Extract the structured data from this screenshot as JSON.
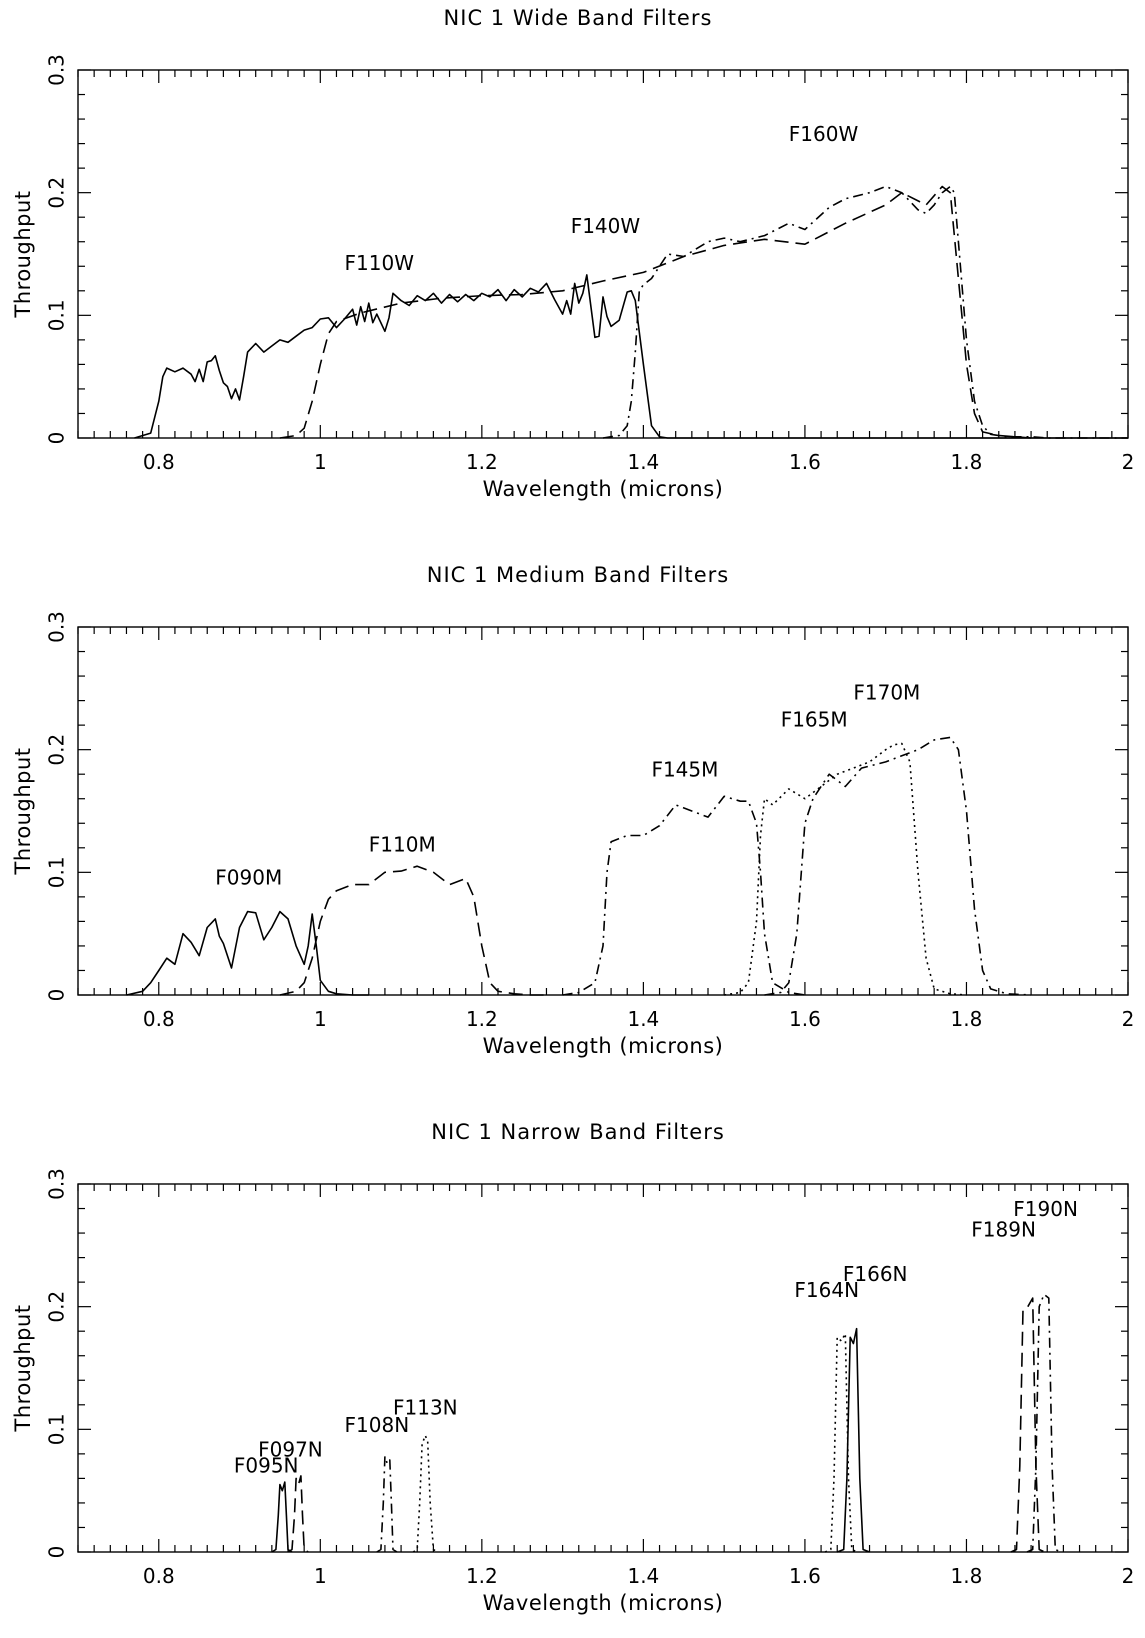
{
  "chart_data": [
    {
      "type": "line",
      "title": "NIC 1 Wide Band Filters",
      "xlabel": "Wavelength (microns)",
      "ylabel": "Throughput",
      "xlim": [
        0.7,
        2.0
      ],
      "ylim": [
        0,
        0.3
      ],
      "xticks": [
        "0.8",
        "1",
        "1.2",
        "1.4",
        "1.6",
        "1.8",
        "2"
      ],
      "yticks": [
        "0",
        "0.1",
        "0.2",
        "0.3"
      ],
      "grid": false,
      "series": [
        {
          "name": "F110W",
          "style": "solid",
          "label_at": [
            1.03,
            0.137
          ],
          "x": [
            0.77,
            0.79,
            0.8,
            0.805,
            0.81,
            0.82,
            0.83,
            0.84,
            0.845,
            0.85,
            0.855,
            0.86,
            0.865,
            0.87,
            0.875,
            0.88,
            0.885,
            0.89,
            0.895,
            0.9,
            0.905,
            0.91,
            0.92,
            0.93,
            0.94,
            0.95,
            0.96,
            0.97,
            0.98,
            0.99,
            1.0,
            1.01,
            1.02,
            1.03,
            1.04,
            1.045,
            1.05,
            1.055,
            1.06,
            1.065,
            1.07,
            1.08,
            1.085,
            1.09,
            1.1,
            1.11,
            1.12,
            1.13,
            1.14,
            1.15,
            1.16,
            1.17,
            1.18,
            1.19,
            1.2,
            1.21,
            1.22,
            1.23,
            1.24,
            1.25,
            1.26,
            1.27,
            1.28,
            1.29,
            1.3,
            1.305,
            1.31,
            1.315,
            1.32,
            1.325,
            1.33,
            1.34,
            1.345,
            1.35,
            1.355,
            1.36,
            1.37,
            1.38,
            1.385,
            1.39,
            1.4,
            1.41,
            1.42,
            1.43,
            1.45,
            1.5,
            1.6,
            1.7,
            1.8,
            1.9,
            2.0
          ],
          "y": [
            0,
            0.004,
            0.03,
            0.05,
            0.057,
            0.054,
            0.057,
            0.052,
            0.046,
            0.056,
            0.046,
            0.062,
            0.063,
            0.067,
            0.055,
            0.045,
            0.042,
            0.032,
            0.04,
            0.031,
            0.05,
            0.07,
            0.077,
            0.07,
            0.075,
            0.08,
            0.078,
            0.083,
            0.088,
            0.09,
            0.097,
            0.098,
            0.09,
            0.097,
            0.105,
            0.092,
            0.107,
            0.095,
            0.11,
            0.094,
            0.101,
            0.087,
            0.098,
            0.118,
            0.112,
            0.108,
            0.116,
            0.112,
            0.118,
            0.11,
            0.117,
            0.111,
            0.117,
            0.112,
            0.118,
            0.115,
            0.121,
            0.112,
            0.121,
            0.115,
            0.122,
            0.119,
            0.126,
            0.113,
            0.101,
            0.112,
            0.101,
            0.126,
            0.11,
            0.118,
            0.133,
            0.082,
            0.083,
            0.115,
            0.099,
            0.091,
            0.096,
            0.119,
            0.12,
            0.112,
            0.06,
            0.01,
            0.001,
            0,
            0,
            0,
            0,
            0,
            0,
            0,
            0
          ]
        },
        {
          "name": "F140W",
          "style": "dashed",
          "label_at": [
            1.31,
            0.167
          ],
          "x": [
            0.95,
            0.97,
            0.98,
            0.99,
            1.0,
            1.01,
            1.02,
            1.05,
            1.1,
            1.15,
            1.2,
            1.25,
            1.3,
            1.35,
            1.4,
            1.45,
            1.5,
            1.55,
            1.6,
            1.65,
            1.7,
            1.72,
            1.75,
            1.77,
            1.78,
            1.79,
            1.8,
            1.81,
            1.82,
            1.84,
            1.86,
            1.88
          ],
          "y": [
            0,
            0.002,
            0.008,
            0.03,
            0.06,
            0.085,
            0.095,
            0.102,
            0.11,
            0.114,
            0.116,
            0.117,
            0.12,
            0.128,
            0.135,
            0.148,
            0.157,
            0.162,
            0.158,
            0.175,
            0.19,
            0.2,
            0.19,
            0.205,
            0.2,
            0.13,
            0.06,
            0.02,
            0.005,
            0.002,
            0.001,
            0
          ]
        },
        {
          "name": "F160W",
          "style": "dashdot",
          "label_at": [
            1.58,
            0.242
          ],
          "x": [
            1.35,
            1.37,
            1.38,
            1.385,
            1.39,
            1.395,
            1.4,
            1.41,
            1.43,
            1.45,
            1.48,
            1.5,
            1.52,
            1.55,
            1.58,
            1.6,
            1.63,
            1.65,
            1.68,
            1.7,
            1.72,
            1.74,
            1.75,
            1.76,
            1.77,
            1.78,
            1.785,
            1.79,
            1.8,
            1.81,
            1.82,
            1.83,
            1.85,
            1.88,
            1.9,
            2.0
          ],
          "y": [
            0,
            0.002,
            0.01,
            0.03,
            0.07,
            0.12,
            0.125,
            0.13,
            0.15,
            0.148,
            0.16,
            0.163,
            0.16,
            0.165,
            0.175,
            0.17,
            0.188,
            0.195,
            0.2,
            0.205,
            0.2,
            0.186,
            0.183,
            0.19,
            0.2,
            0.205,
            0.2,
            0.16,
            0.08,
            0.03,
            0.01,
            0.003,
            0.001,
            0.001,
            0,
            0
          ]
        }
      ]
    },
    {
      "type": "line",
      "title": "NIC 1 Medium Band Filters",
      "xlabel": "Wavelength (microns)",
      "ylabel": "Throughput",
      "xlim": [
        0.7,
        2.0
      ],
      "ylim": [
        0,
        0.3
      ],
      "xticks": [
        "0.8",
        "1",
        "1.2",
        "1.4",
        "1.6",
        "1.8",
        "2"
      ],
      "yticks": [
        "0",
        "0.1",
        "0.2",
        "0.3"
      ],
      "grid": false,
      "series": [
        {
          "name": "F090M",
          "style": "solid",
          "label_at": [
            0.87,
            0.09
          ],
          "x": [
            0.76,
            0.78,
            0.79,
            0.8,
            0.81,
            0.82,
            0.83,
            0.84,
            0.85,
            0.86,
            0.87,
            0.875,
            0.88,
            0.89,
            0.9,
            0.91,
            0.92,
            0.93,
            0.94,
            0.95,
            0.96,
            0.97,
            0.98,
            0.985,
            0.99,
            0.995,
            1.0,
            1.01,
            1.02,
            1.04,
            1.06
          ],
          "y": [
            0,
            0.003,
            0.01,
            0.02,
            0.03,
            0.025,
            0.05,
            0.043,
            0.032,
            0.055,
            0.062,
            0.048,
            0.042,
            0.022,
            0.055,
            0.068,
            0.067,
            0.045,
            0.055,
            0.068,
            0.062,
            0.04,
            0.025,
            0.04,
            0.066,
            0.04,
            0.012,
            0.003,
            0.001,
            0,
            0
          ]
        },
        {
          "name": "F110M",
          "style": "dashed",
          "label_at": [
            1.06,
            0.117
          ],
          "x": [
            0.95,
            0.97,
            0.98,
            0.99,
            1.0,
            1.01,
            1.02,
            1.04,
            1.06,
            1.08,
            1.1,
            1.12,
            1.14,
            1.16,
            1.18,
            1.19,
            1.2,
            1.21,
            1.22,
            1.24,
            1.26,
            1.28
          ],
          "y": [
            0,
            0.003,
            0.01,
            0.03,
            0.06,
            0.078,
            0.085,
            0.09,
            0.09,
            0.1,
            0.101,
            0.105,
            0.1,
            0.09,
            0.095,
            0.08,
            0.04,
            0.01,
            0.003,
            0.001,
            0,
            0
          ]
        },
        {
          "name": "F145M",
          "style": "dashdot",
          "label_at": [
            1.41,
            0.178
          ],
          "x": [
            1.3,
            1.32,
            1.34,
            1.35,
            1.355,
            1.36,
            1.38,
            1.4,
            1.42,
            1.44,
            1.46,
            1.48,
            1.5,
            1.52,
            1.53,
            1.54,
            1.545,
            1.55,
            1.56,
            1.58,
            1.6
          ],
          "y": [
            0,
            0.002,
            0.01,
            0.04,
            0.1,
            0.125,
            0.13,
            0.13,
            0.138,
            0.155,
            0.15,
            0.145,
            0.162,
            0.158,
            0.158,
            0.14,
            0.1,
            0.05,
            0.01,
            0.002,
            0
          ]
        },
        {
          "name": "F165M",
          "style": "dotted",
          "label_at": [
            1.57,
            0.219
          ],
          "x": [
            1.5,
            1.52,
            1.53,
            1.54,
            1.545,
            1.55,
            1.56,
            1.58,
            1.6,
            1.62,
            1.64,
            1.66,
            1.68,
            1.7,
            1.71,
            1.72,
            1.73,
            1.74,
            1.75,
            1.76,
            1.78,
            1.8
          ],
          "y": [
            0,
            0.002,
            0.01,
            0.06,
            0.13,
            0.16,
            0.155,
            0.168,
            0.16,
            0.17,
            0.18,
            0.185,
            0.19,
            0.2,
            0.204,
            0.205,
            0.19,
            0.1,
            0.03,
            0.005,
            0.001,
            0
          ]
        },
        {
          "name": "F170M",
          "style": "dashdot",
          "label_at": [
            1.66,
            0.241
          ],
          "x": [
            1.55,
            1.57,
            1.58,
            1.59,
            1.6,
            1.61,
            1.63,
            1.65,
            1.67,
            1.7,
            1.72,
            1.74,
            1.76,
            1.78,
            1.79,
            1.8,
            1.81,
            1.82,
            1.83,
            1.85,
            1.88
          ],
          "y": [
            0,
            0.002,
            0.01,
            0.05,
            0.14,
            0.16,
            0.18,
            0.17,
            0.185,
            0.19,
            0.195,
            0.2,
            0.208,
            0.21,
            0.2,
            0.15,
            0.07,
            0.02,
            0.005,
            0.001,
            0
          ]
        }
      ]
    },
    {
      "type": "line",
      "title": "NIC 1 Narrow Band Filters",
      "xlabel": "Wavelength (microns)",
      "ylabel": "Throughput",
      "xlim": [
        0.7,
        2.0
      ],
      "ylim": [
        0,
        0.3
      ],
      "xticks": [
        "0.8",
        "1",
        "1.2",
        "1.4",
        "1.6",
        "1.8",
        "2"
      ],
      "yticks": [
        "0",
        "0.1",
        "0.2",
        "0.3"
      ],
      "grid": false,
      "series": [
        {
          "name": "F095N",
          "style": "solid",
          "label_at": [
            0.893,
            0.065
          ],
          "x": [
            0.94,
            0.945,
            0.948,
            0.95,
            0.953,
            0.956,
            0.958,
            0.96,
            0.965
          ],
          "y": [
            0,
            0.002,
            0.03,
            0.055,
            0.05,
            0.057,
            0.03,
            0.002,
            0
          ]
        },
        {
          "name": "F097N",
          "style": "dashed",
          "label_at": [
            0.923,
            0.078
          ],
          "x": [
            0.96,
            0.965,
            0.968,
            0.97,
            0.973,
            0.976,
            0.978,
            0.98,
            0.985
          ],
          "y": [
            0,
            0.002,
            0.03,
            0.06,
            0.055,
            0.062,
            0.03,
            0.002,
            0
          ]
        },
        {
          "name": "F108N",
          "style": "dashdot",
          "label_at": [
            1.03,
            0.098
          ],
          "x": [
            1.07,
            1.075,
            1.078,
            1.08,
            1.083,
            1.086,
            1.088,
            1.09,
            1.095
          ],
          "y": [
            0,
            0.002,
            0.04,
            0.078,
            0.072,
            0.075,
            0.04,
            0.002,
            0
          ]
        },
        {
          "name": "F113N",
          "style": "dotted",
          "label_at": [
            1.09,
            0.112
          ],
          "x": [
            1.115,
            1.12,
            1.123,
            1.126,
            1.13,
            1.133,
            1.136,
            1.14,
            1.145
          ],
          "y": [
            0,
            0.002,
            0.04,
            0.088,
            0.095,
            0.09,
            0.04,
            0.002,
            0
          ]
        },
        {
          "name": "F164N",
          "style": "dotted",
          "label_at": [
            1.587,
            0.208
          ],
          "x": [
            1.625,
            1.632,
            1.636,
            1.64,
            1.645,
            1.65,
            1.654,
            1.658,
            1.665
          ],
          "y": [
            0,
            0.002,
            0.06,
            0.175,
            0.172,
            0.178,
            0.06,
            0.002,
            0
          ]
        },
        {
          "name": "F166N",
          "style": "solid",
          "label_at": [
            1.647,
            0.221
          ],
          "x": [
            1.64,
            1.648,
            1.652,
            1.656,
            1.66,
            1.664,
            1.668,
            1.672,
            1.68
          ],
          "y": [
            0,
            0.002,
            0.06,
            0.175,
            0.17,
            0.182,
            0.06,
            0.002,
            0
          ]
        },
        {
          "name": "F189N",
          "style": "dashed",
          "label_at": [
            1.806,
            0.257
          ],
          "x": [
            1.855,
            1.862,
            1.866,
            1.87,
            1.876,
            1.882,
            1.886,
            1.89,
            1.897
          ],
          "y": [
            0,
            0.002,
            0.07,
            0.198,
            0.2,
            0.207,
            0.07,
            0.002,
            0
          ]
        },
        {
          "name": "F190N",
          "style": "dashdot",
          "label_at": [
            1.858,
            0.274
          ],
          "x": [
            1.875,
            1.882,
            1.886,
            1.89,
            1.896,
            1.902,
            1.906,
            1.91,
            1.917
          ],
          "y": [
            0,
            0.002,
            0.07,
            0.2,
            0.21,
            0.207,
            0.07,
            0.002,
            0
          ]
        }
      ]
    }
  ]
}
